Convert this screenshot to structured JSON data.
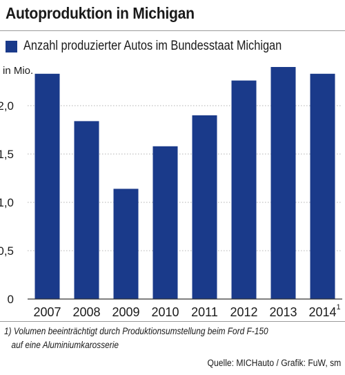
{
  "title": "Autoproduktion in Michigan",
  "colors": {
    "bar": "#1a3a8a",
    "text": "#1a1a1a",
    "grid": "#b0b0b0"
  },
  "chart_data": {
    "type": "bar",
    "title": "Autoproduktion in Michigan",
    "ylabel": "in Mio.",
    "categories": [
      "2007",
      "2008",
      "2009",
      "2010",
      "2011",
      "2012",
      "2013",
      "2014"
    ],
    "category_footnote_marks": [
      "",
      "",
      "",
      "",
      "",
      "",
      "",
      "1"
    ],
    "series": [
      {
        "name": "Anzahl produzierter Autos im Bundesstaat Michigan",
        "values": [
          2.33,
          1.84,
          1.14,
          1.58,
          1.9,
          2.26,
          2.4,
          2.33
        ]
      }
    ],
    "ylim": [
      0,
      2.45
    ],
    "yticks": [
      0,
      0.5,
      1.0,
      1.5,
      2.0
    ],
    "ytick_labels": [
      "0",
      "0,5",
      "1,0",
      "1,5",
      "2,0"
    ],
    "grid": "horizontal dotted",
    "legend": "top-left"
  },
  "footnote": {
    "line1": "1) Volumen beeinträchtigt durch Produktionsumstellung beim Ford F-150",
    "line2": "auf eine Aluminiumkarosserie"
  },
  "source": "Quelle: MICHauto / Grafik: FuW, sm"
}
